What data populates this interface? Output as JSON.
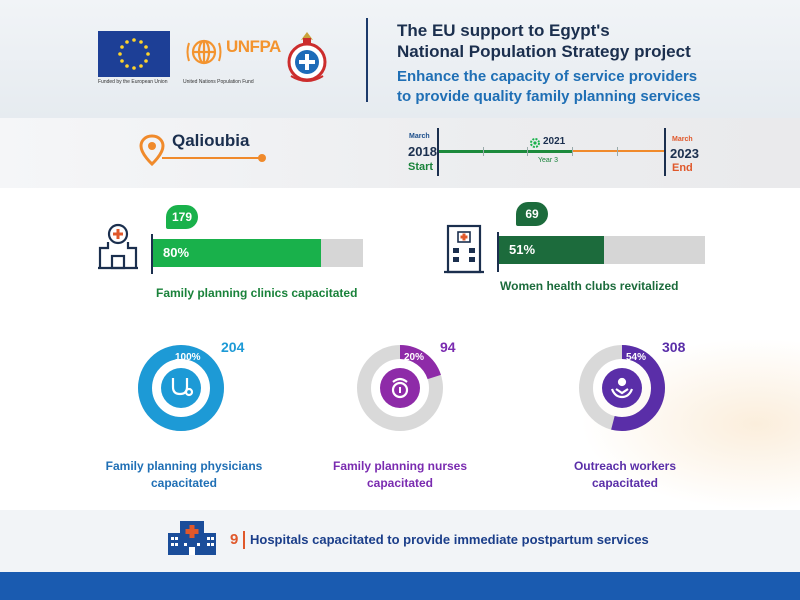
{
  "header": {
    "eu_caption": "Funded by the European Union",
    "unfpa_name": "UNFPA",
    "unfpa_caption": "United Nations Population Fund",
    "title_line1": "The EU support to Egypt's",
    "title_line2": "National Population Strategy project",
    "subtitle_line1": "Enhance the capacity of service providers",
    "subtitle_line2": "to provide quality family planning services"
  },
  "location": {
    "name": "Qalioubia",
    "icon": "map-pin-icon"
  },
  "timeline": {
    "start_month": "March",
    "start_year": "2018",
    "start_label": "Start",
    "mid_year": "2021",
    "mid_label": "Year 3",
    "end_month": "March",
    "end_year": "2023",
    "end_label": "End"
  },
  "kpis": [
    {
      "count": "179",
      "percent": "80%",
      "fraction": 0.8,
      "label": "Family planning clinics capacitated",
      "icon": "clinic-icon",
      "color": "#19b14b"
    },
    {
      "count": "69",
      "percent": "51%",
      "fraction": 0.51,
      "label": "Women health clubs revitalized",
      "icon": "health-club-building-icon",
      "color": "#1c6b3c"
    }
  ],
  "donuts": [
    {
      "count": "204",
      "percent": "100%",
      "fraction": 1.0,
      "label_line1": "Family planning physicians",
      "label_line2": "capacitated",
      "icon": "stethoscope-icon",
      "color": "#1d9ad6",
      "count_color": "#1d9ad6",
      "label_color": "#1f6fb5"
    },
    {
      "count": "94",
      "percent": "20%",
      "fraction": 0.2,
      "label_line1": "Family planning nurses",
      "label_line2": "capacitated",
      "icon": "nurse-icon",
      "color": "#8e2ba8",
      "count_color": "#7a2bb0",
      "label_color": "#7a2bb0"
    },
    {
      "count": "308",
      "percent": "54%",
      "fraction": 0.54,
      "label_line1": "Outreach workers",
      "label_line2": "capacitated",
      "icon": "care-hands-icon",
      "color": "#5a2ea8",
      "count_color": "#5a2ea8",
      "label_color": "#5a2ea8"
    }
  ],
  "hospitals": {
    "count": "9",
    "text": "Hospitals capacitated to provide immediate postpartum services",
    "icon": "hospital-icon"
  }
}
